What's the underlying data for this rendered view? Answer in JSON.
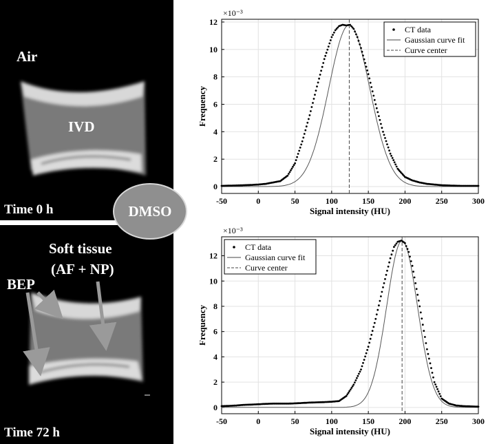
{
  "ct_panels": {
    "top": {
      "air_label": "Air",
      "ivd_label": "IVD",
      "time_label": "Time 0 h"
    },
    "bottom": {
      "soft_tissue_line1": "Soft tissue",
      "soft_tissue_line2": "(AF + NP)",
      "bep_label": "BEP",
      "time_label": "Time 72 h"
    },
    "dmso_label": "DMSO"
  },
  "chart_data": [
    {
      "type": "line",
      "scale_exponent_label": "×10⁻³",
      "xlabel": "Signal intensity (HU)",
      "ylabel": "Frequency",
      "xlim": [
        -50,
        300
      ],
      "ylim": [
        -0.5,
        12.2
      ],
      "xticks": [
        -50,
        0,
        50,
        100,
        150,
        200,
        250,
        300
      ],
      "yticks": [
        0,
        2,
        4,
        6,
        8,
        10,
        12
      ],
      "grid": true,
      "legend_position": "top-right",
      "series": [
        {
          "name": "CT data",
          "style": "dots",
          "x": [
            -50,
            -40,
            -30,
            -20,
            -10,
            0,
            10,
            20,
            30,
            40,
            50,
            60,
            70,
            80,
            90,
            100,
            105,
            110,
            115,
            120,
            125,
            130,
            135,
            140,
            150,
            160,
            170,
            180,
            190,
            200,
            210,
            220,
            230,
            240,
            250,
            260,
            270,
            280,
            290,
            300
          ],
          "y": [
            0.05,
            0.07,
            0.08,
            0.1,
            0.12,
            0.15,
            0.2,
            0.3,
            0.4,
            0.8,
            1.7,
            3.3,
            5.2,
            7.3,
            9.3,
            10.9,
            11.4,
            11.7,
            11.8,
            11.75,
            11.8,
            11.5,
            10.9,
            10.1,
            8.2,
            6.0,
            4.0,
            2.4,
            1.3,
            0.7,
            0.45,
            0.3,
            0.2,
            0.15,
            0.1,
            0.08,
            0.06,
            0.05,
            0.05,
            0.05
          ]
        },
        {
          "name": "Gaussian curve fit",
          "style": "solid",
          "gaussian": {
            "amplitude": 11.8,
            "center": 124,
            "sigma": 28
          }
        },
        {
          "name": "Curve center",
          "style": "dashed",
          "x_value": 124
        }
      ]
    },
    {
      "type": "line",
      "scale_exponent_label": "×10⁻³",
      "xlabel": "Signal intensity (HU)",
      "ylabel": "Frequency",
      "xlim": [
        -50,
        300
      ],
      "ylim": [
        -0.5,
        13.5
      ],
      "xticks": [
        -50,
        0,
        50,
        100,
        150,
        200,
        250,
        300
      ],
      "yticks": [
        0,
        2,
        4,
        6,
        8,
        10,
        12
      ],
      "grid": true,
      "legend_position": "top-left",
      "series": [
        {
          "name": "CT data",
          "style": "dots",
          "x": [
            -50,
            -40,
            -30,
            -20,
            -10,
            0,
            10,
            20,
            30,
            40,
            50,
            60,
            70,
            80,
            90,
            100,
            110,
            120,
            130,
            140,
            150,
            160,
            170,
            180,
            185,
            190,
            195,
            200,
            205,
            210,
            220,
            230,
            240,
            250,
            260,
            270,
            280,
            290,
            300
          ],
          "y": [
            0.1,
            0.12,
            0.15,
            0.2,
            0.22,
            0.25,
            0.28,
            0.3,
            0.3,
            0.3,
            0.32,
            0.35,
            0.38,
            0.4,
            0.42,
            0.45,
            0.5,
            0.9,
            1.8,
            3.0,
            4.8,
            7.0,
            9.5,
            11.8,
            12.7,
            13.1,
            13.2,
            13.0,
            12.3,
            11.2,
            8.0,
            4.6,
            2.0,
            0.7,
            0.3,
            0.15,
            0.1,
            0.08,
            0.06
          ]
        },
        {
          "name": "Gaussian curve fit",
          "style": "solid",
          "gaussian": {
            "amplitude": 13.2,
            "center": 196,
            "sigma": 21
          }
        },
        {
          "name": "Curve center",
          "style": "dashed",
          "x_value": 196
        }
      ]
    }
  ]
}
